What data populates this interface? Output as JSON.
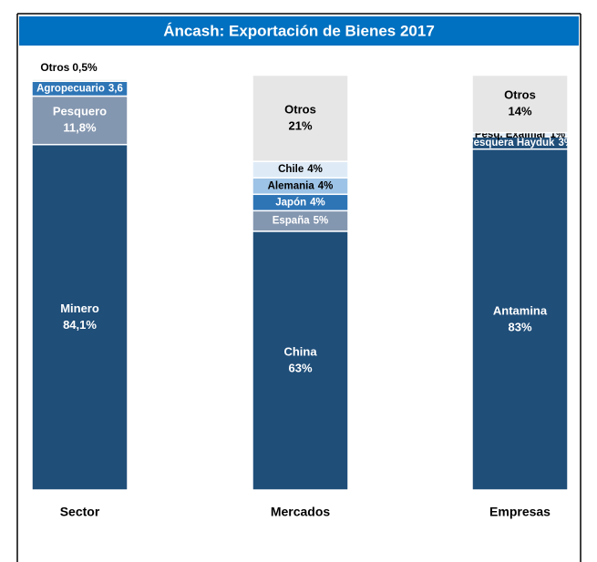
{
  "chart_data": {
    "type": "stacked_bar_100",
    "title": "Áncash: Exportación de Bienes 2017",
    "ylim": [
      0,
      100
    ],
    "bars": [
      {
        "category": "Sector",
        "segments": [
          {
            "name": "Minero",
            "value": 84.1,
            "value_label": "84,1%",
            "color": "#1f4e79"
          },
          {
            "name": "Pesquero",
            "value": 11.8,
            "value_label": "11,8%",
            "color": "#8497b0"
          },
          {
            "name": "Agropecuario",
            "value": 3.6,
            "value_label": "3,6",
            "color": "#2e75b6"
          },
          {
            "name": "Otros",
            "value": 0.5,
            "value_label": "0,5%",
            "color": "#e7e6e6"
          }
        ]
      },
      {
        "category": "Mercados",
        "segments": [
          {
            "name": "China",
            "value": 63,
            "value_label": "63%",
            "color": "#1f4e79"
          },
          {
            "name": "España",
            "value": 5,
            "value_label": "5%",
            "color": "#8497b0"
          },
          {
            "name": "Japón",
            "value": 4,
            "value_label": "4%",
            "color": "#2e75b6"
          },
          {
            "name": "Alemania",
            "value": 4,
            "value_label": "4%",
            "color": "#9dc3e6"
          },
          {
            "name": "Chile",
            "value": 4,
            "value_label": "4%",
            "color": "#deebf7"
          },
          {
            "name": "Otros",
            "value": 21,
            "value_label": "21%",
            "color": "#e7e6e6"
          }
        ]
      },
      {
        "category": "Empresas",
        "segments": [
          {
            "name": "Antamina",
            "value": 83,
            "value_label": "83%",
            "color": "#1f4e79"
          },
          {
            "name": "Pesquera Hayduk",
            "value": 3,
            "value_label": "3%",
            "color": "#1f4e79"
          },
          {
            "name": "Pesq. Exalmar",
            "value": 1,
            "value_label": "1%",
            "color": "#deebf7"
          },
          {
            "name": "Otros",
            "value": 14,
            "value_label": "14%",
            "color": "#e7e6e6"
          }
        ]
      }
    ]
  }
}
